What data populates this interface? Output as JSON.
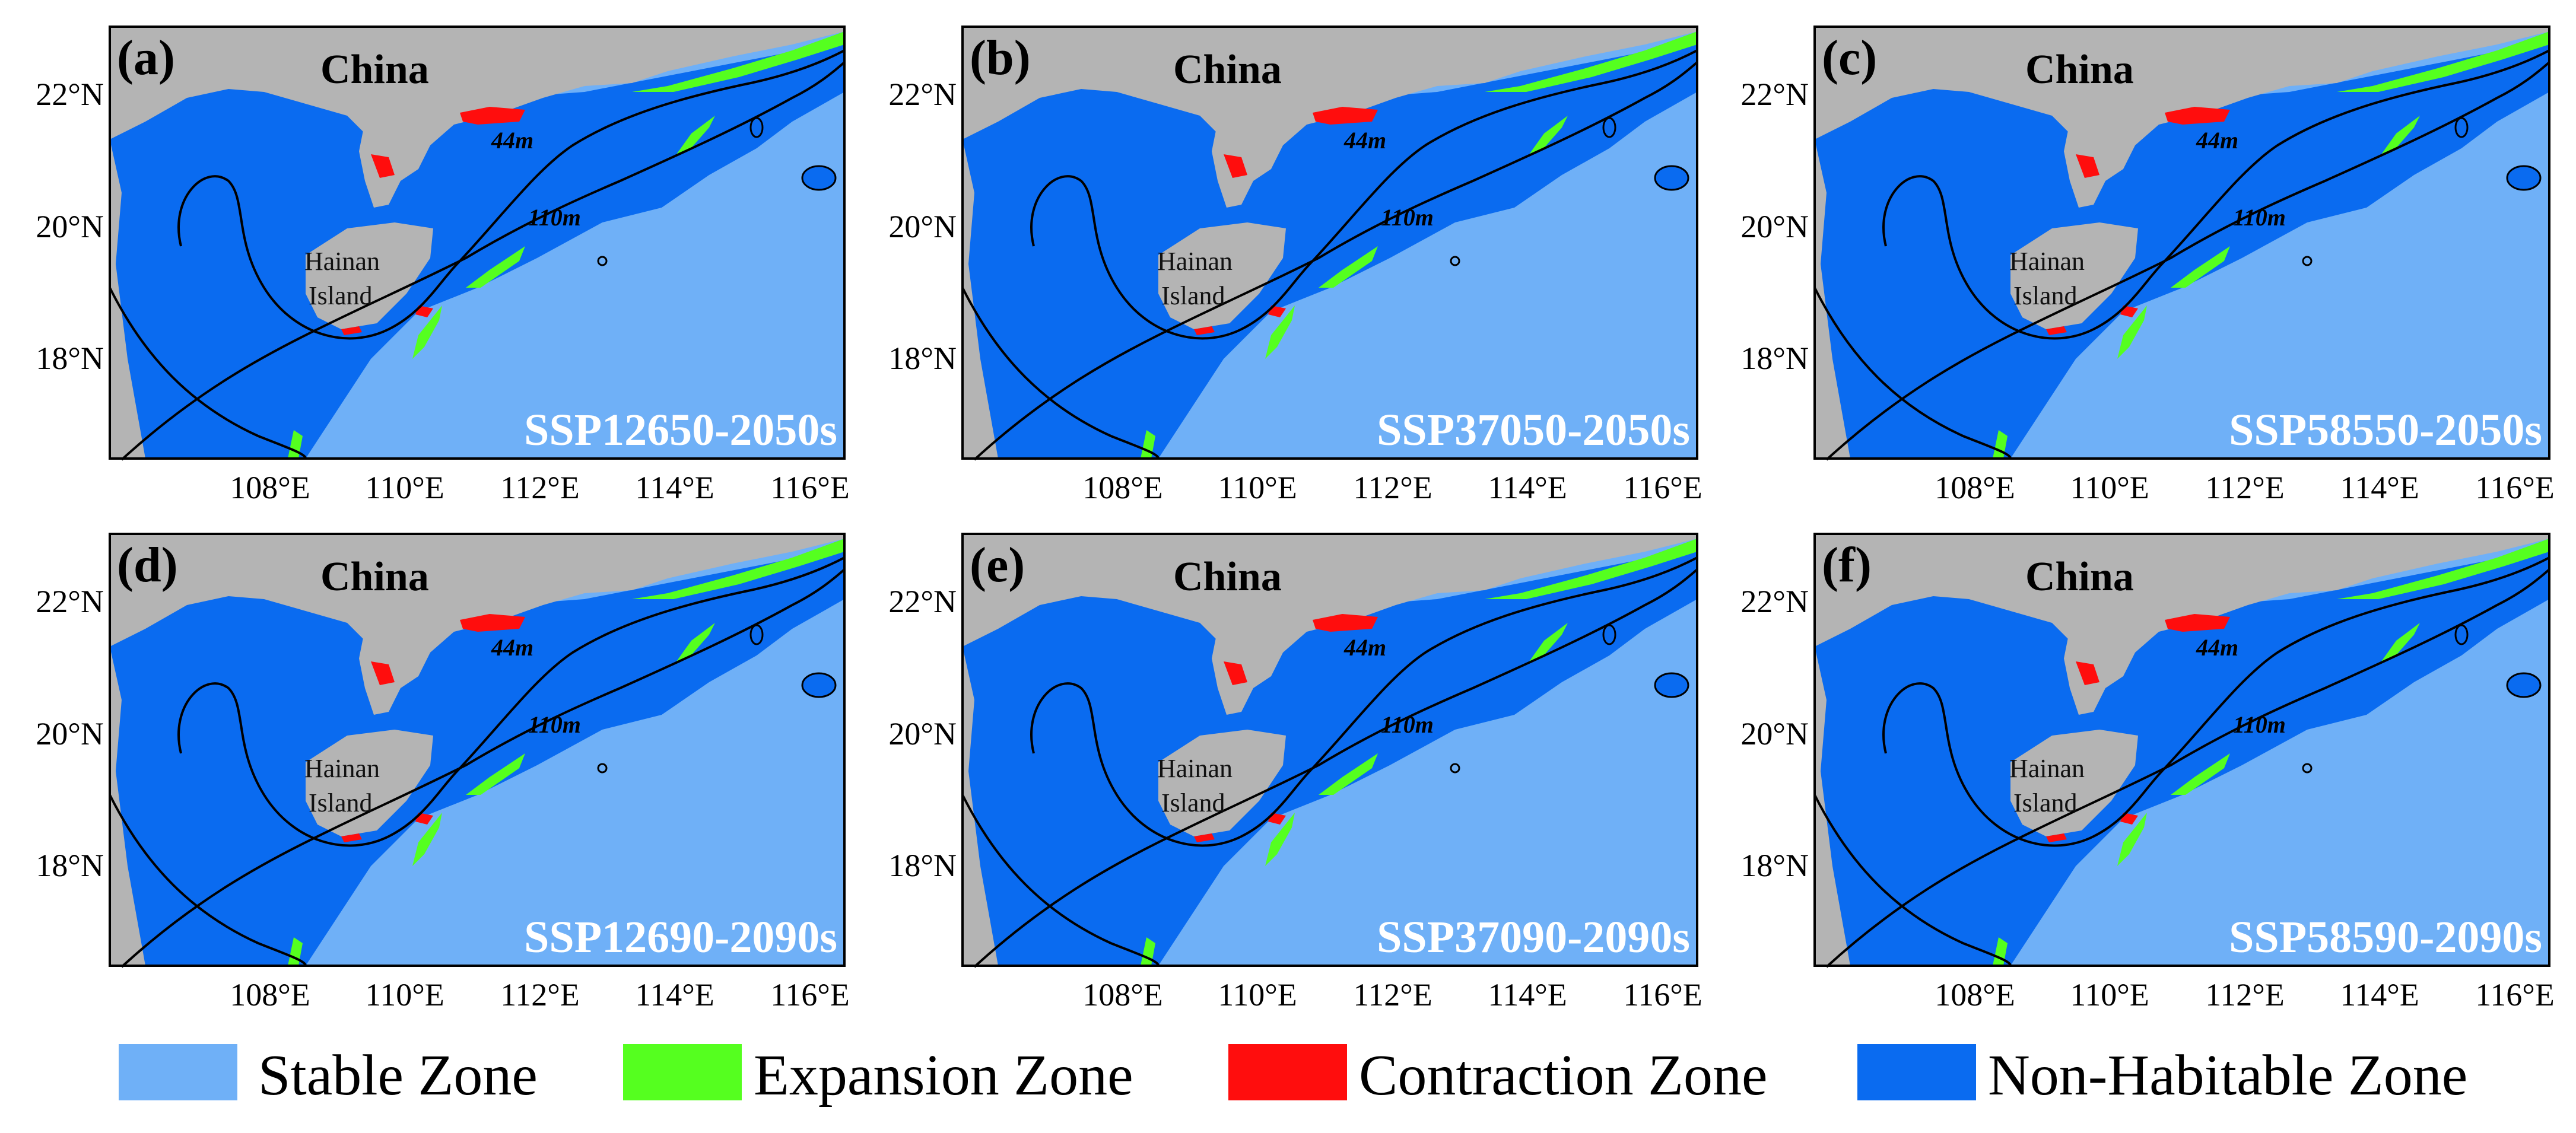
{
  "colors": {
    "stable": "#6fb0f7",
    "expansion": "#55ff1f",
    "contraction": "#ff0d0d",
    "non_habitable": "#0a6bf0",
    "land": "#b4b4b4",
    "contour": "#000000",
    "scenario_text": "#ffffff"
  },
  "axes": {
    "lon_ticks": [
      "108°E",
      "110°E",
      "112°E",
      "114°E",
      "116°E"
    ],
    "lat_ticks": [
      "22°N",
      "20°N",
      "18°N"
    ]
  },
  "labels": {
    "country": "China",
    "island_line1": "Hainan",
    "island_line2": "Island",
    "contour_shallow": "44m",
    "contour_deep": "110m"
  },
  "panels": [
    {
      "letter": "(a)",
      "scenario": "SSP12650-2050s"
    },
    {
      "letter": "(b)",
      "scenario": "SSP37050-2050s"
    },
    {
      "letter": "(c)",
      "scenario": "SSP58550-2050s"
    },
    {
      "letter": "(d)",
      "scenario": "SSP12690-2090s"
    },
    {
      "letter": "(e)",
      "scenario": "SSP37090-2090s"
    },
    {
      "letter": "(f)",
      "scenario": "SSP58590-2090s"
    }
  ],
  "legend": [
    {
      "label": "Stable Zone",
      "color": "#6fb0f7"
    },
    {
      "label": "Expansion Zone",
      "color": "#55ff1f"
    },
    {
      "label": "Contraction Zone",
      "color": "#ff0d0d"
    },
    {
      "label": "Non-Habitable Zone",
      "color": "#0a6bf0"
    }
  ]
}
